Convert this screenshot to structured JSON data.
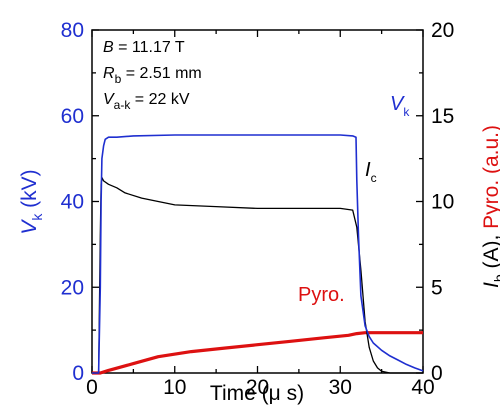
{
  "chart_data": {
    "type": "line",
    "xlabel": "Time (μ s)",
    "ylabel_left": {
      "main": "V",
      "sub": "k",
      "unit": " (kV)"
    },
    "ylabel_right": {
      "main": "I",
      "sub": "b",
      "unit": " (A), ",
      "red": "Pyro. (a.u.)"
    },
    "xlim": [
      0,
      40
    ],
    "ylim_left": [
      0,
      80
    ],
    "ylim_right": [
      0,
      20
    ],
    "x_ticks": [
      "0",
      "10",
      "20",
      "30",
      "40"
    ],
    "y_left_ticks": [
      "0",
      "20",
      "40",
      "60",
      "80"
    ],
    "y_right_ticks": [
      "0",
      "5",
      "10",
      "15",
      "20"
    ],
    "colors": {
      "vk": "#1f2fd0",
      "ic": "#000000",
      "pyro": "#dd1111",
      "axis_left": "#1f2fd0",
      "axis_right_pyro": "#dd1111"
    },
    "annotations": {
      "b_sym": "B",
      "b_val": " = 11.17 T",
      "r_sym": "R",
      "r_sub": "b",
      "r_val": " = 2.51 mm",
      "v_sym": "V",
      "v_sub": "a-k",
      "v_val": " = 22 kV"
    },
    "series": [
      {
        "name": "Vk",
        "axis": "left",
        "x": [
          0,
          0.8,
          1.0,
          1.1,
          1.2,
          1.4,
          1.6,
          2,
          3,
          5,
          10,
          15,
          20,
          25,
          30,
          31.5,
          31.9,
          32.0,
          32.2,
          32.5,
          33,
          33.5,
          34,
          35,
          36,
          37,
          38,
          39,
          40
        ],
        "y": [
          0,
          0,
          20,
          40,
          50,
          53,
          54.5,
          55,
          55,
          55.3,
          55.5,
          55.5,
          55.5,
          55.5,
          55.5,
          55.3,
          55,
          45,
          32,
          18,
          11,
          8.5,
          7,
          5.3,
          4,
          3,
          2,
          1.2,
          0.5
        ]
      },
      {
        "name": "Ic",
        "axis": "right",
        "x": [
          0,
          0.8,
          1.0,
          1.1,
          1.2,
          1.4,
          2,
          3,
          4,
          6,
          8,
          10,
          15,
          20,
          25,
          30,
          31.5,
          32,
          32.5,
          33,
          33.5,
          34,
          34.5,
          35,
          36,
          40
        ],
        "y": [
          0,
          0,
          8,
          11,
          11.4,
          11.2,
          11.0,
          10.8,
          10.5,
          10.2,
          10.0,
          9.8,
          9.7,
          9.6,
          9.6,
          9.6,
          9.5,
          8.5,
          6.0,
          3.0,
          1.5,
          0.7,
          0.3,
          0.1,
          0,
          0
        ]
      },
      {
        "name": "Pyro.",
        "axis": "right",
        "x": [
          0,
          1,
          2,
          5,
          8,
          12,
          16,
          20,
          24,
          28,
          31,
          32,
          33,
          34,
          36,
          38,
          40
        ],
        "y": [
          0,
          0,
          0.15,
          0.55,
          0.95,
          1.25,
          1.45,
          1.65,
          1.85,
          2.05,
          2.2,
          2.3,
          2.35,
          2.35,
          2.35,
          2.35,
          2.35
        ]
      }
    ],
    "series_labels": {
      "vk_sym": "V",
      "vk_sub": "k",
      "ic_sym": "I",
      "ic_sub": "c",
      "pyro": "Pyro."
    }
  }
}
